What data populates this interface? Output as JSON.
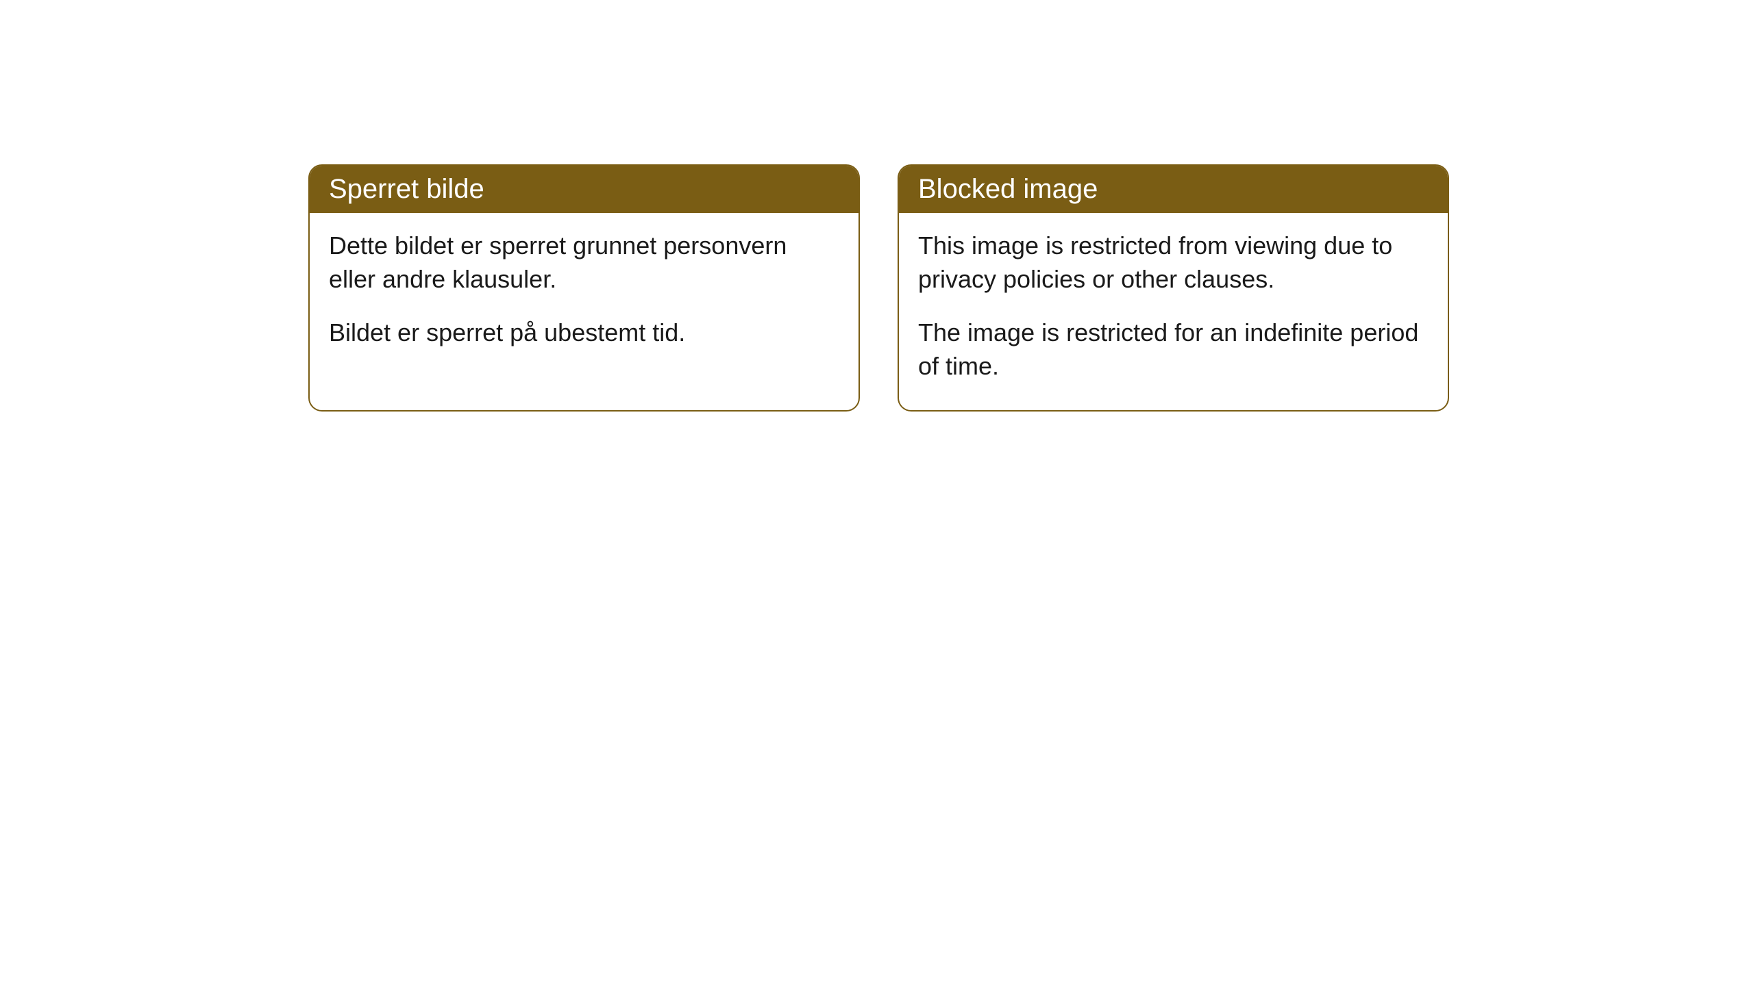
{
  "cards": [
    {
      "header": "Sperret bilde",
      "paragraph1": "Dette bildet er sperret grunnet personvern eller andre klausuler.",
      "paragraph2": "Bildet er sperret på ubestemt tid."
    },
    {
      "header": "Blocked image",
      "paragraph1": "This image is restricted from viewing due to privacy policies or other clauses.",
      "paragraph2": "The image is restricted for an indefinite period of time."
    }
  ],
  "styling": {
    "header_background_color": "#7a5d14",
    "header_text_color": "#ffffff",
    "border_color": "#7a5d14",
    "body_background_color": "#ffffff",
    "body_text_color": "#1a1a1a",
    "border_radius": 20,
    "header_fontsize": 40,
    "body_fontsize": 36
  }
}
